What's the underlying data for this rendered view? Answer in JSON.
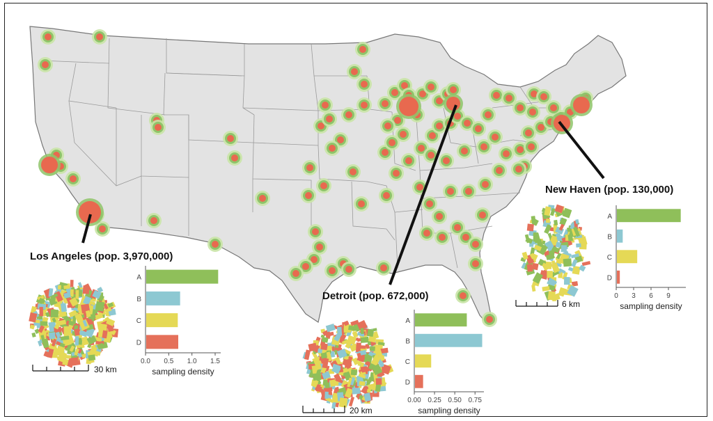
{
  "colors": {
    "A": "#8fbf5a",
    "B": "#8dc8d2",
    "C": "#e5d956",
    "D": "#e5705a",
    "site_core": "#e8694f",
    "site_ring": "#8fc46a",
    "site_outer": "#c9e4a6",
    "land": "#e3e3e3",
    "border": "#777777"
  },
  "cities": [
    {
      "id": "la",
      "title": "Los Angeles (pop. 3,970,000)",
      "scale_label": "30 km",
      "categories": [
        "A",
        "B",
        "C",
        "D"
      ],
      "values": [
        1.55,
        0.73,
        0.68,
        0.69
      ],
      "ticks": [
        "0.0",
        "0.5",
        "1.0",
        "1.5"
      ],
      "tick_values": [
        0,
        0.5,
        1.0,
        1.5
      ],
      "xlim": [
        0,
        1.62
      ],
      "xlabel": "sampling density"
    },
    {
      "id": "det",
      "title": "Detroit (pop. 672,000)",
      "scale_label": "20 km",
      "categories": [
        "A",
        "B",
        "C",
        "D"
      ],
      "values": [
        0.64,
        0.83,
        0.2,
        0.1
      ],
      "ticks": [
        "0.00",
        "0.25",
        "0.50",
        "0.75"
      ],
      "tick_values": [
        0,
        0.25,
        0.5,
        0.75
      ],
      "xlim": [
        0,
        0.86
      ],
      "xlabel": "sampling density"
    },
    {
      "id": "nh",
      "title": "New Haven (pop. 130,000)",
      "scale_label": "6 km",
      "categories": [
        "A",
        "B",
        "C",
        "D"
      ],
      "values": [
        11,
        1,
        3.5,
        0.5
      ],
      "ticks": [
        "0",
        "3",
        "6",
        "9"
      ],
      "tick_values": [
        0,
        3,
        6,
        9
      ],
      "xlim": [
        0,
        12
      ],
      "xlabel": "sampling density"
    }
  ]
}
